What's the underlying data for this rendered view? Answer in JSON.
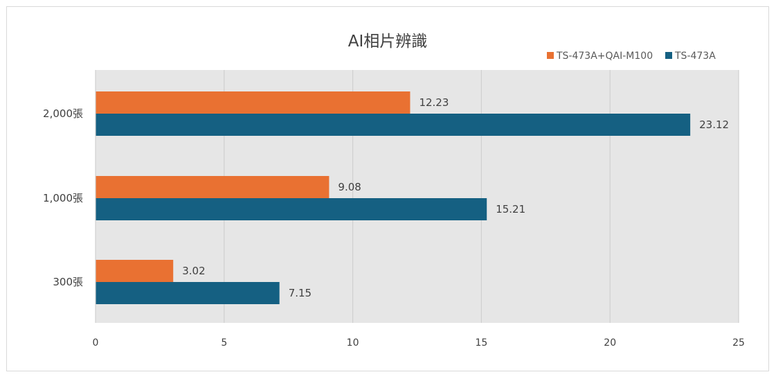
{
  "chart_data": {
    "type": "bar",
    "orientation": "horizontal",
    "title": "AI相片辨識",
    "categories": [
      "2,000張",
      "1,000張",
      "300張"
    ],
    "series": [
      {
        "name": "TS-473A+QAI-M100",
        "color": "#e97132",
        "values": [
          12.23,
          9.08,
          3.02
        ],
        "labels": [
          "12.23",
          "9.08",
          "3.02"
        ]
      },
      {
        "name": "TS-473A",
        "color": "#156082",
        "values": [
          23.12,
          15.21,
          7.15
        ],
        "labels": [
          "23.12",
          "15.21",
          "7.15"
        ]
      }
    ],
    "xlim": [
      0,
      25
    ],
    "xticks": [
      0,
      5,
      10,
      15,
      20,
      25
    ],
    "xtick_labels": [
      "0",
      "5",
      "10",
      "15",
      "20",
      "25"
    ],
    "grid": "vertical",
    "legend_position": "top-right",
    "plot_background": "#e6e6e6",
    "grid_color": "#ffffff"
  }
}
